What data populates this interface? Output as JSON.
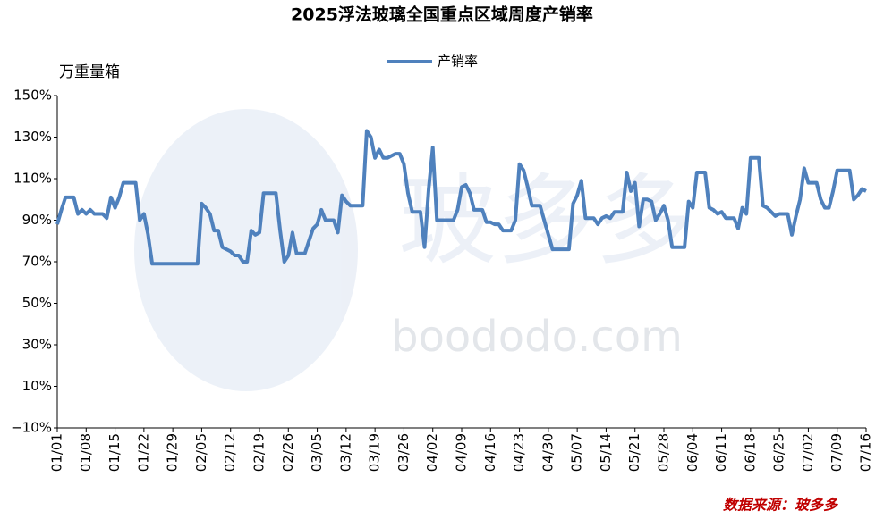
{
  "chart_data": {
    "type": "line",
    "title": "2025浮法玻璃全国重点区域周度产销率",
    "y_axis_label": "万重量箱",
    "source": "数据来源：玻多多",
    "watermark": [
      "玻多多",
      "boododo.com"
    ],
    "categories": [
      "01/01",
      null,
      null,
      null,
      null,
      null,
      null,
      "01/08",
      null,
      null,
      null,
      null,
      null,
      null,
      "01/15",
      null,
      null,
      null,
      null,
      null,
      null,
      "01/22",
      null,
      null,
      null,
      null,
      null,
      null,
      "01/29",
      null,
      null,
      null,
      null,
      null,
      null,
      "02/05",
      null,
      null,
      null,
      null,
      null,
      null,
      "02/12",
      null,
      null,
      null,
      null,
      null,
      null,
      "02/19",
      null,
      null,
      null,
      null,
      null,
      null,
      "02/26",
      null,
      null,
      null,
      null,
      null,
      null,
      "03/05",
      null,
      null,
      null,
      null,
      null,
      null,
      "03/12",
      null,
      null,
      null,
      null,
      null,
      null,
      "03/19",
      null,
      null,
      null,
      null,
      null,
      null,
      "03/26",
      null,
      null,
      null,
      null,
      null,
      null,
      "04/02",
      null,
      null,
      null,
      null,
      null,
      null,
      "04/09",
      null,
      null,
      null,
      null,
      null,
      null,
      "04/16",
      null,
      null,
      null,
      null,
      null,
      null,
      "04/23",
      null,
      null,
      null,
      null,
      null,
      null,
      "04/30",
      null,
      null,
      null,
      null,
      null,
      null,
      "05/07",
      null,
      null,
      null,
      null,
      null,
      null,
      "05/14",
      null,
      null,
      null,
      null,
      null,
      null,
      "05/21",
      null,
      null,
      null,
      null,
      null,
      null,
      "05/28",
      null,
      null,
      null,
      null,
      null,
      null,
      "06/04",
      null,
      null,
      null,
      null,
      null,
      null,
      "06/11",
      null,
      null,
      null,
      null,
      null,
      null,
      "06/18",
      null,
      null,
      null,
      null,
      null,
      null,
      "06/25",
      null,
      null,
      null,
      null,
      null,
      null,
      "07/02",
      null,
      null,
      null,
      null,
      null,
      null,
      "07/09",
      null,
      null,
      null,
      null,
      null,
      null,
      "07/16"
    ],
    "series": [
      {
        "name": "产销率",
        "color": "#4f81bd",
        "values": [
          88,
          95,
          101,
          101,
          101,
          93,
          95,
          93,
          95,
          93,
          93,
          93,
          91,
          101,
          96,
          101,
          108,
          108,
          108,
          108,
          90,
          93,
          83,
          69,
          69,
          69,
          69,
          69,
          69,
          69,
          69,
          69,
          69,
          69,
          69,
          98,
          96,
          93,
          85,
          85,
          77,
          76,
          75,
          73,
          73,
          70,
          70,
          85,
          83,
          84,
          103,
          103,
          103,
          103,
          85,
          70,
          73,
          84,
          74,
          74,
          74,
          80,
          86,
          88,
          95,
          90,
          90,
          90,
          84,
          102,
          99,
          97,
          97,
          97,
          97,
          133,
          130,
          120,
          124,
          120,
          120,
          121,
          122,
          122,
          117,
          103,
          94,
          94,
          94,
          77,
          105,
          125,
          90,
          90,
          90,
          90,
          90,
          95,
          106,
          107,
          103,
          95,
          95,
          95,
          89,
          89,
          88,
          88,
          85,
          85,
          85,
          90,
          117,
          114,
          106,
          97,
          97,
          97,
          90,
          83,
          76,
          76,
          76,
          76,
          76,
          98,
          102,
          109,
          91,
          91,
          91,
          88,
          91,
          92,
          91,
          94,
          94,
          94,
          113,
          104,
          108,
          87,
          100,
          100,
          99,
          90,
          93,
          97,
          90,
          77,
          77,
          77,
          77,
          99,
          96,
          113,
          113,
          113,
          96,
          95,
          93,
          94,
          91,
          91,
          91,
          86,
          96,
          93,
          120,
          120,
          120,
          97,
          96,
          94,
          92,
          93,
          93,
          93,
          83,
          92,
          100,
          115,
          108,
          108,
          108,
          100,
          96,
          96,
          104,
          114,
          114,
          114,
          114,
          100,
          102,
          105,
          104
        ]
      }
    ],
    "ylim": [
      -10,
      150
    ],
    "yticks": [
      {
        "value": -10,
        "label": "−10%"
      },
      {
        "value": 10,
        "label": "10%"
      },
      {
        "value": 30,
        "label": "30%"
      },
      {
        "value": 50,
        "label": "50%"
      },
      {
        "value": 70,
        "label": "70%"
      },
      {
        "value": 90,
        "label": "90%"
      },
      {
        "value": 110,
        "label": "110%"
      },
      {
        "value": 130,
        "label": "130%"
      },
      {
        "value": 150,
        "label": "150%"
      }
    ],
    "grid": false,
    "legend": "top"
  }
}
